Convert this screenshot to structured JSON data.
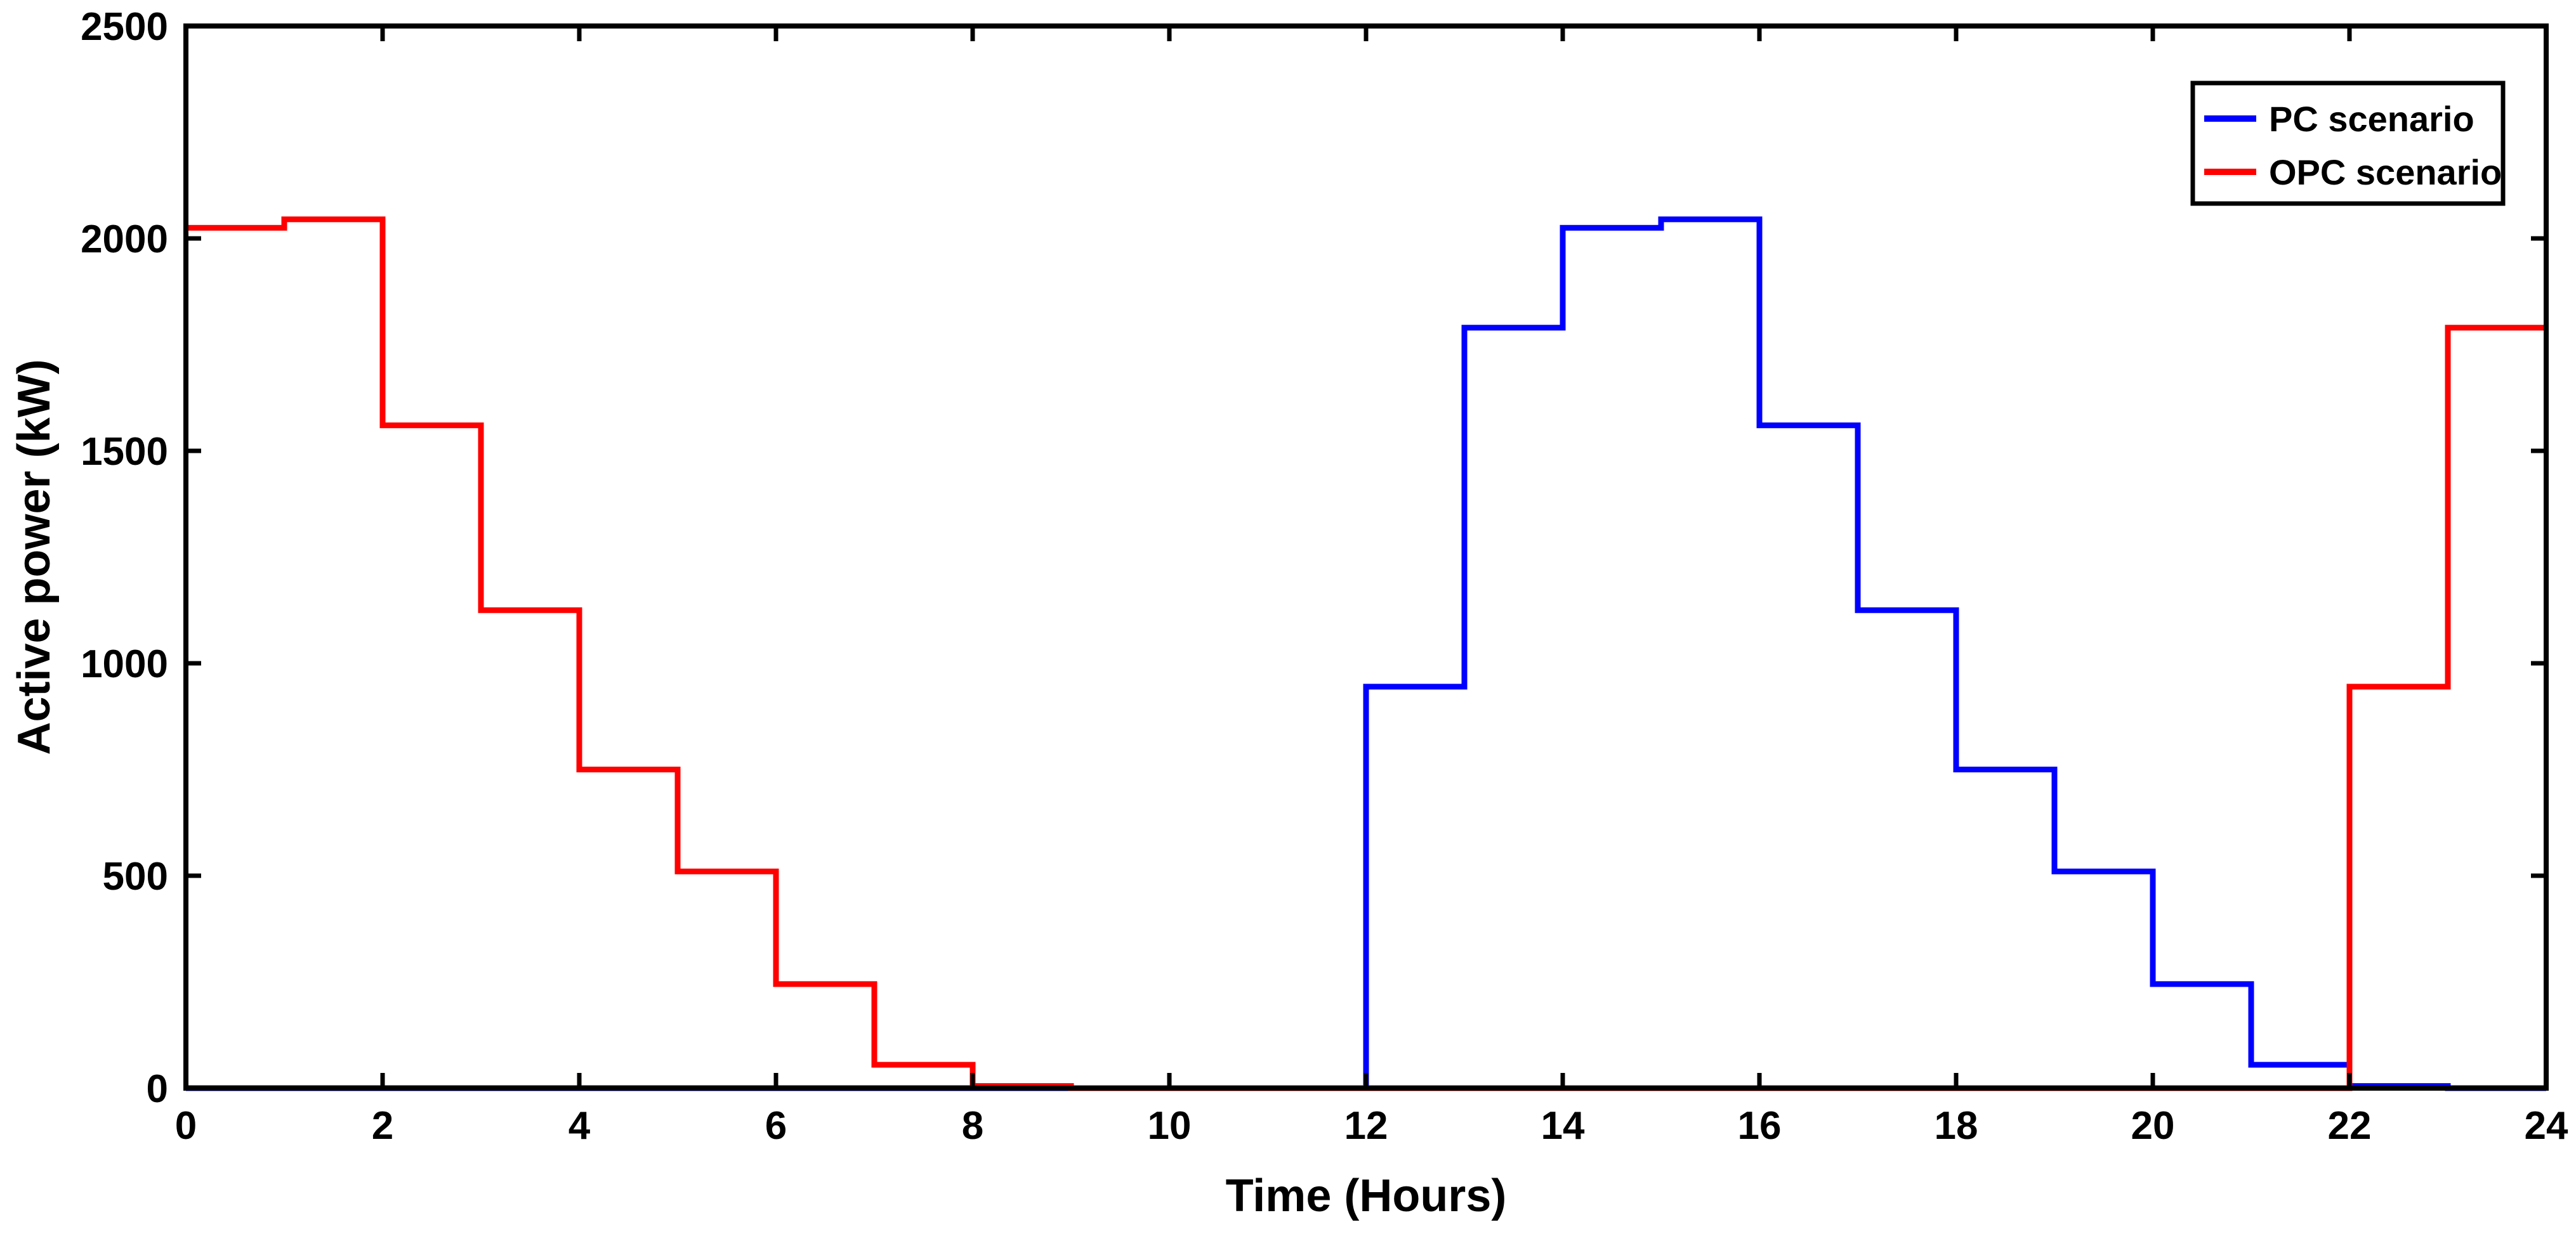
{
  "chart_data": {
    "type": "line",
    "xlabel": "Time (Hours)",
    "ylabel": "Active power (kW)",
    "xlim": [
      0,
      24
    ],
    "ylim": [
      0,
      2500
    ],
    "xticks": [
      0,
      2,
      4,
      6,
      8,
      10,
      12,
      14,
      16,
      18,
      20,
      22,
      24
    ],
    "yticks": [
      0,
      500,
      1000,
      1500,
      2000,
      2500
    ],
    "grid": false,
    "legend_position": "top-right",
    "step": "post",
    "x": [
      0,
      1,
      2,
      3,
      4,
      5,
      6,
      7,
      8,
      9,
      10,
      11,
      12,
      13,
      14,
      15,
      16,
      17,
      18,
      19,
      20,
      21,
      22,
      23,
      24
    ],
    "series": [
      {
        "name": "PC scenario",
        "color": "#0000ff",
        "values": [
          0,
          0,
          0,
          0,
          0,
          0,
          0,
          0,
          0,
          0,
          0,
          0,
          945,
          1790,
          2025,
          2045,
          1560,
          1125,
          750,
          510,
          245,
          55,
          5,
          0,
          0
        ]
      },
      {
        "name": "OPC scenario",
        "color": "#ff0000",
        "values": [
          2025,
          2045,
          1560,
          1125,
          750,
          510,
          245,
          55,
          5,
          0,
          0,
          0,
          0,
          0,
          0,
          0,
          0,
          0,
          0,
          0,
          0,
          0,
          945,
          1790,
          1790
        ]
      }
    ]
  }
}
